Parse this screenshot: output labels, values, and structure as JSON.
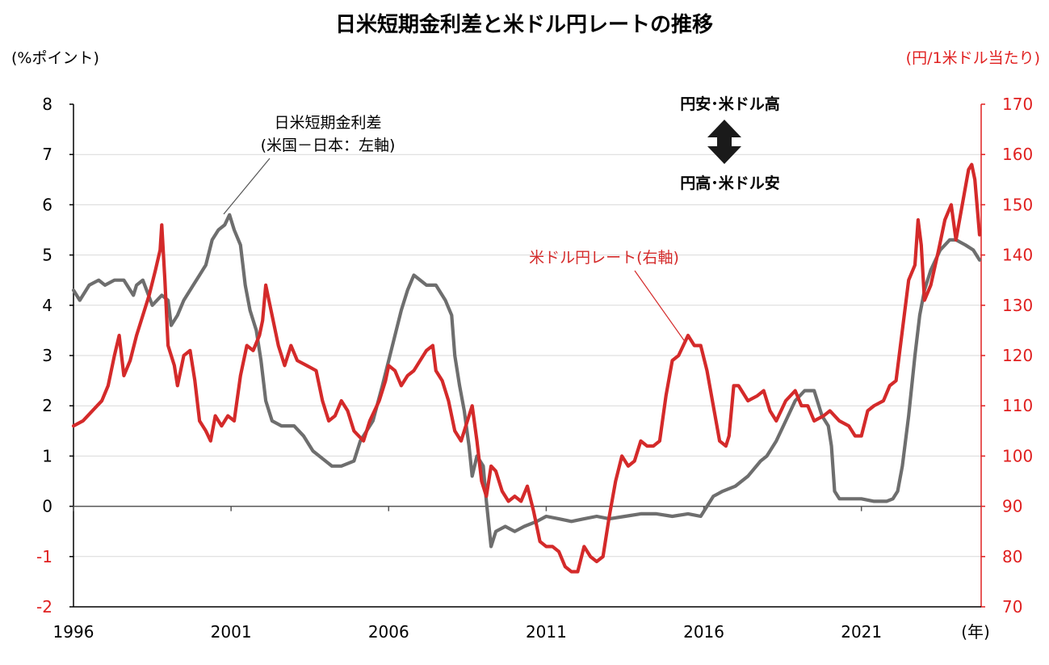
{
  "chart_data": {
    "type": "line",
    "title": "日米短期金利差と米ドル円レートの推移",
    "left_axis": {
      "unit_label": "(%ポイント)",
      "ylim": [
        -2,
        8
      ],
      "ticks": [
        "8",
        "7",
        "6",
        "5",
        "4",
        "3",
        "2",
        "1",
        "0",
        "-1",
        "-2"
      ]
    },
    "right_axis": {
      "unit_label": "(円/1米ドル当たり)",
      "ylim": [
        70,
        170
      ],
      "ticks": [
        "170",
        "160",
        "150",
        "140",
        "130",
        "120",
        "110",
        "100",
        "90",
        "80",
        "70"
      ]
    },
    "x_axis": {
      "unit_label": "(年)",
      "xlim": [
        1996,
        2024.8
      ],
      "ticks": [
        {
          "value": 1996,
          "label": "1996"
        },
        {
          "value": 2001,
          "label": "2001"
        },
        {
          "value": 2006,
          "label": "2006"
        },
        {
          "value": 2011,
          "label": "2011"
        },
        {
          "value": 2016,
          "label": "2016"
        },
        {
          "value": 2021,
          "label": "2021"
        }
      ]
    },
    "annotations": {
      "spread_line1": "日米短期金利差",
      "spread_line2": "(米国－日本：左軸)",
      "fx_label": "米ドル円レート(右軸)",
      "arrow_top": "円安･米ドル高",
      "arrow_bottom": "円高･米ドル安"
    },
    "series": [
      {
        "color": "#6e6e6e",
        "axis": "left",
        "points": [
          [
            1996.0,
            4.3
          ],
          [
            1996.2,
            4.1
          ],
          [
            1996.5,
            4.4
          ],
          [
            1996.8,
            4.5
          ],
          [
            1997.0,
            4.4
          ],
          [
            1997.3,
            4.5
          ],
          [
            1997.6,
            4.5
          ],
          [
            1997.9,
            4.2
          ],
          [
            1998.0,
            4.4
          ],
          [
            1998.2,
            4.5
          ],
          [
            1998.5,
            4.0
          ],
          [
            1998.8,
            4.2
          ],
          [
            1999.0,
            4.1
          ],
          [
            1999.1,
            3.6
          ],
          [
            1999.3,
            3.8
          ],
          [
            1999.5,
            4.1
          ],
          [
            1999.8,
            4.4
          ],
          [
            2000.0,
            4.6
          ],
          [
            2000.2,
            4.8
          ],
          [
            2000.4,
            5.3
          ],
          [
            2000.6,
            5.5
          ],
          [
            2000.8,
            5.6
          ],
          [
            2000.95,
            5.8
          ],
          [
            2001.1,
            5.5
          ],
          [
            2001.3,
            5.2
          ],
          [
            2001.45,
            4.4
          ],
          [
            2001.6,
            3.9
          ],
          [
            2001.8,
            3.5
          ],
          [
            2001.95,
            2.9
          ],
          [
            2002.1,
            2.1
          ],
          [
            2002.3,
            1.7
          ],
          [
            2002.6,
            1.6
          ],
          [
            2003.0,
            1.6
          ],
          [
            2003.3,
            1.4
          ],
          [
            2003.6,
            1.1
          ],
          [
            2004.0,
            0.9
          ],
          [
            2004.2,
            0.8
          ],
          [
            2004.5,
            0.8
          ],
          [
            2004.9,
            0.9
          ],
          [
            2005.1,
            1.3
          ],
          [
            2005.5,
            1.7
          ],
          [
            2005.8,
            2.4
          ],
          [
            2006.0,
            2.9
          ],
          [
            2006.2,
            3.4
          ],
          [
            2006.4,
            3.9
          ],
          [
            2006.6,
            4.3
          ],
          [
            2006.8,
            4.6
          ],
          [
            2007.0,
            4.5
          ],
          [
            2007.2,
            4.4
          ],
          [
            2007.5,
            4.4
          ],
          [
            2007.8,
            4.1
          ],
          [
            2008.0,
            3.8
          ],
          [
            2008.1,
            3.0
          ],
          [
            2008.25,
            2.4
          ],
          [
            2008.4,
            1.9
          ],
          [
            2008.55,
            1.2
          ],
          [
            2008.65,
            0.6
          ],
          [
            2008.8,
            1.0
          ],
          [
            2009.0,
            0.8
          ],
          [
            2009.1,
            0.1
          ],
          [
            2009.25,
            -0.8
          ],
          [
            2009.4,
            -0.5
          ],
          [
            2009.7,
            -0.4
          ],
          [
            2010.0,
            -0.5
          ],
          [
            2010.3,
            -0.4
          ],
          [
            2010.7,
            -0.3
          ],
          [
            2011.0,
            -0.2
          ],
          [
            2011.4,
            -0.25
          ],
          [
            2011.8,
            -0.3
          ],
          [
            2012.2,
            -0.25
          ],
          [
            2012.6,
            -0.2
          ],
          [
            2013.0,
            -0.25
          ],
          [
            2013.5,
            -0.2
          ],
          [
            2014.0,
            -0.15
          ],
          [
            2014.5,
            -0.15
          ],
          [
            2015.0,
            -0.2
          ],
          [
            2015.5,
            -0.15
          ],
          [
            2015.9,
            -0.2
          ],
          [
            2016.1,
            0.0
          ],
          [
            2016.3,
            0.2
          ],
          [
            2016.6,
            0.3
          ],
          [
            2017.0,
            0.4
          ],
          [
            2017.4,
            0.6
          ],
          [
            2017.8,
            0.9
          ],
          [
            2018.0,
            1.0
          ],
          [
            2018.3,
            1.3
          ],
          [
            2018.6,
            1.7
          ],
          [
            2018.9,
            2.1
          ],
          [
            2019.2,
            2.3
          ],
          [
            2019.5,
            2.3
          ],
          [
            2019.75,
            1.8
          ],
          [
            2019.95,
            1.6
          ],
          [
            2020.05,
            1.2
          ],
          [
            2020.15,
            0.3
          ],
          [
            2020.3,
            0.15
          ],
          [
            2020.6,
            0.15
          ],
          [
            2021.0,
            0.15
          ],
          [
            2021.4,
            0.1
          ],
          [
            2021.8,
            0.1
          ],
          [
            2022.0,
            0.15
          ],
          [
            2022.15,
            0.3
          ],
          [
            2022.3,
            0.8
          ],
          [
            2022.5,
            1.8
          ],
          [
            2022.7,
            3.0
          ],
          [
            2022.85,
            3.8
          ],
          [
            2023.0,
            4.3
          ],
          [
            2023.2,
            4.7
          ],
          [
            2023.5,
            5.1
          ],
          [
            2023.8,
            5.3
          ],
          [
            2024.0,
            5.3
          ],
          [
            2024.3,
            5.2
          ],
          [
            2024.55,
            5.1
          ],
          [
            2024.75,
            4.9
          ]
        ]
      },
      {
        "color": "#d42a2a",
        "axis": "right",
        "points": [
          [
            1996.0,
            106
          ],
          [
            1996.3,
            107
          ],
          [
            1996.6,
            109
          ],
          [
            1996.9,
            111
          ],
          [
            1997.1,
            114
          ],
          [
            1997.3,
            120
          ],
          [
            1997.45,
            124
          ],
          [
            1997.6,
            116
          ],
          [
            1997.8,
            119
          ],
          [
            1998.0,
            124
          ],
          [
            1998.2,
            128
          ],
          [
            1998.4,
            132
          ],
          [
            1998.6,
            137
          ],
          [
            1998.75,
            141
          ],
          [
            1998.8,
            146
          ],
          [
            1998.9,
            135
          ],
          [
            1999.0,
            122
          ],
          [
            1999.2,
            118
          ],
          [
            1999.3,
            114
          ],
          [
            1999.5,
            120
          ],
          [
            1999.7,
            121
          ],
          [
            1999.85,
            115
          ],
          [
            2000.0,
            107
          ],
          [
            2000.2,
            105
          ],
          [
            2000.35,
            103
          ],
          [
            2000.5,
            108
          ],
          [
            2000.7,
            106
          ],
          [
            2000.9,
            108
          ],
          [
            2001.1,
            107
          ],
          [
            2001.3,
            116
          ],
          [
            2001.5,
            122
          ],
          [
            2001.7,
            121
          ],
          [
            2001.9,
            124
          ],
          [
            2002.0,
            127
          ],
          [
            2002.1,
            134
          ],
          [
            2002.3,
            128
          ],
          [
            2002.5,
            122
          ],
          [
            2002.7,
            118
          ],
          [
            2002.9,
            122
          ],
          [
            2003.1,
            119
          ],
          [
            2003.4,
            118
          ],
          [
            2003.7,
            117
          ],
          [
            2003.9,
            111
          ],
          [
            2004.1,
            107
          ],
          [
            2004.3,
            108
          ],
          [
            2004.5,
            111
          ],
          [
            2004.7,
            109
          ],
          [
            2004.9,
            105
          ],
          [
            2005.2,
            103
          ],
          [
            2005.4,
            107
          ],
          [
            2005.7,
            111
          ],
          [
            2005.9,
            115
          ],
          [
            2006.0,
            118
          ],
          [
            2006.2,
            117
          ],
          [
            2006.4,
            114
          ],
          [
            2006.6,
            116
          ],
          [
            2006.8,
            117
          ],
          [
            2007.0,
            119
          ],
          [
            2007.2,
            121
          ],
          [
            2007.4,
            122
          ],
          [
            2007.5,
            117
          ],
          [
            2007.7,
            115
          ],
          [
            2007.9,
            111
          ],
          [
            2008.1,
            105
          ],
          [
            2008.3,
            103
          ],
          [
            2008.5,
            107
          ],
          [
            2008.65,
            110
          ],
          [
            2008.8,
            103
          ],
          [
            2008.95,
            95
          ],
          [
            2009.1,
            92
          ],
          [
            2009.25,
            98
          ],
          [
            2009.4,
            97
          ],
          [
            2009.6,
            93
          ],
          [
            2009.8,
            91
          ],
          [
            2010.0,
            92
          ],
          [
            2010.2,
            91
          ],
          [
            2010.4,
            94
          ],
          [
            2010.6,
            89
          ],
          [
            2010.8,
            83
          ],
          [
            2011.0,
            82
          ],
          [
            2011.2,
            82
          ],
          [
            2011.4,
            81
          ],
          [
            2011.6,
            78
          ],
          [
            2011.8,
            77
          ],
          [
            2012.0,
            77
          ],
          [
            2012.2,
            82
          ],
          [
            2012.4,
            80
          ],
          [
            2012.6,
            79
          ],
          [
            2012.8,
            80
          ],
          [
            2013.0,
            88
          ],
          [
            2013.2,
            95
          ],
          [
            2013.4,
            100
          ],
          [
            2013.6,
            98
          ],
          [
            2013.8,
            99
          ],
          [
            2014.0,
            103
          ],
          [
            2014.2,
            102
          ],
          [
            2014.4,
            102
          ],
          [
            2014.6,
            103
          ],
          [
            2014.8,
            112
          ],
          [
            2015.0,
            119
          ],
          [
            2015.2,
            120
          ],
          [
            2015.5,
            124
          ],
          [
            2015.7,
            122
          ],
          [
            2015.9,
            122
          ],
          [
            2016.1,
            117
          ],
          [
            2016.3,
            110
          ],
          [
            2016.5,
            103
          ],
          [
            2016.7,
            102
          ],
          [
            2016.8,
            104
          ],
          [
            2016.95,
            114
          ],
          [
            2017.1,
            114
          ],
          [
            2017.4,
            111
          ],
          [
            2017.7,
            112
          ],
          [
            2017.9,
            113
          ],
          [
            2018.1,
            109
          ],
          [
            2018.3,
            107
          ],
          [
            2018.6,
            111
          ],
          [
            2018.9,
            113
          ],
          [
            2019.1,
            110
          ],
          [
            2019.3,
            110
          ],
          [
            2019.5,
            107
          ],
          [
            2019.8,
            108
          ],
          [
            2020.0,
            109
          ],
          [
            2020.3,
            107
          ],
          [
            2020.6,
            106
          ],
          [
            2020.8,
            104
          ],
          [
            2021.0,
            104
          ],
          [
            2021.2,
            109
          ],
          [
            2021.4,
            110
          ],
          [
            2021.7,
            111
          ],
          [
            2021.9,
            114
          ],
          [
            2022.1,
            115
          ],
          [
            2022.3,
            125
          ],
          [
            2022.5,
            135
          ],
          [
            2022.7,
            138
          ],
          [
            2022.8,
            147
          ],
          [
            2022.9,
            142
          ],
          [
            2023.0,
            131
          ],
          [
            2023.2,
            134
          ],
          [
            2023.45,
            141
          ],
          [
            2023.65,
            147
          ],
          [
            2023.85,
            150
          ],
          [
            2024.0,
            143
          ],
          [
            2024.2,
            150
          ],
          [
            2024.4,
            157
          ],
          [
            2024.5,
            158
          ],
          [
            2024.6,
            155
          ],
          [
            2024.75,
            144
          ]
        ]
      }
    ]
  }
}
